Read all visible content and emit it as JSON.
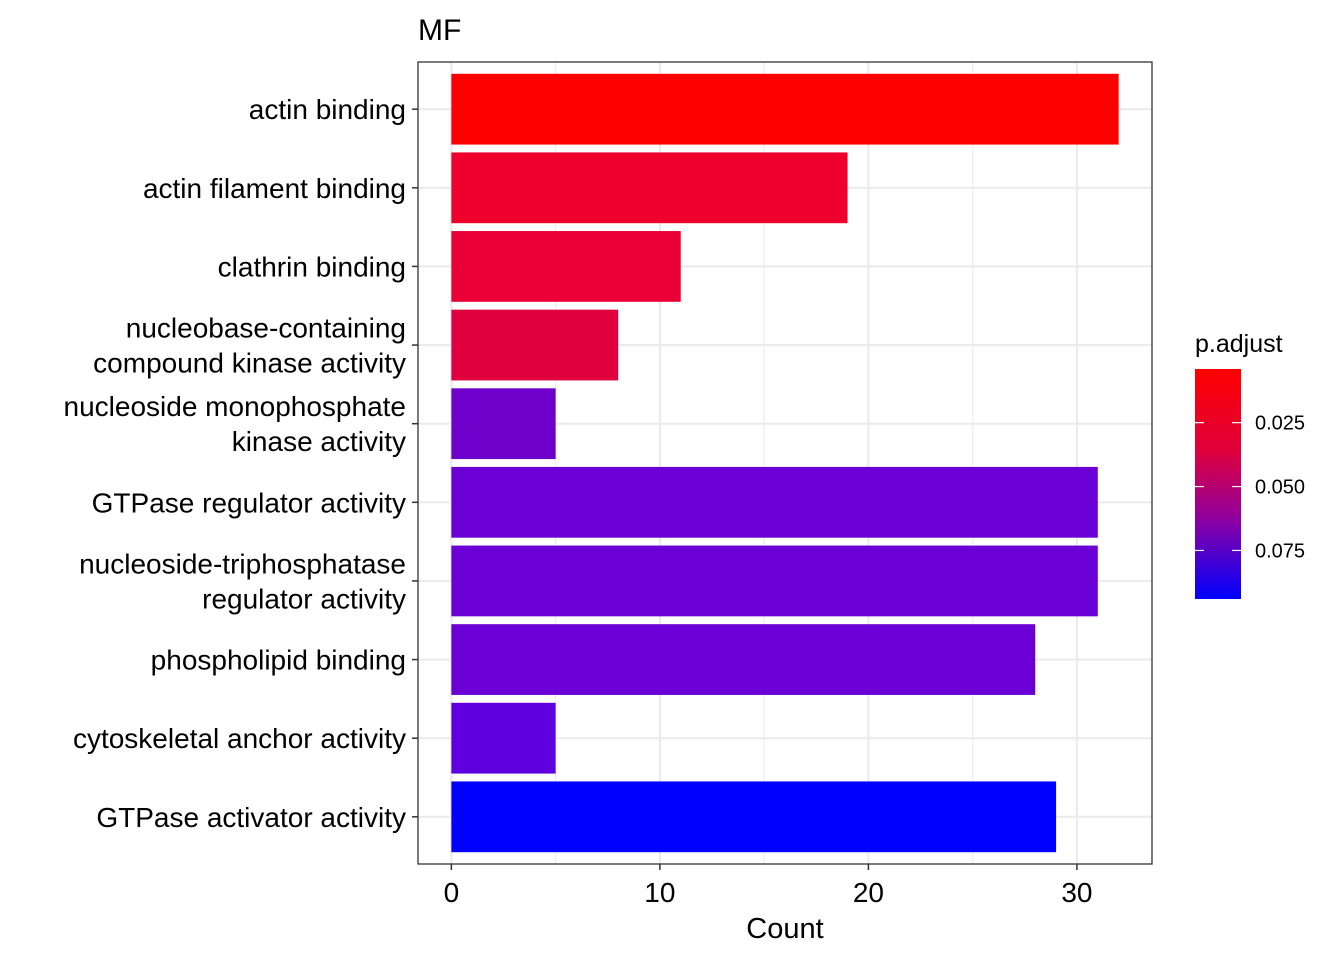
{
  "chart_data": {
    "type": "bar",
    "orientation": "horizontal",
    "title": "MF",
    "xlabel": "Count",
    "ylabel": "",
    "xlim": [
      -1.6,
      33.6
    ],
    "xticks": [
      0,
      10,
      20,
      30
    ],
    "grid": true,
    "legend_position": "right",
    "categories": [
      "actin binding",
      "actin filament binding",
      "clathrin binding",
      "nucleobase-containing\ncompound kinase activity",
      "nucleoside monophosphate\nkinase activity",
      "GTPase regulator activity",
      "nucleoside-triphosphatase\nregulator activity",
      "phospholipid binding",
      "cytoskeletal anchor activity",
      "GTPase activator activity"
    ],
    "values": [
      32,
      19,
      11,
      8,
      5,
      31,
      31,
      28,
      5,
      29
    ],
    "p_adjust": [
      0.004,
      0.012,
      0.016,
      0.022,
      0.072,
      0.073,
      0.073,
      0.073,
      0.076,
      0.094
    ],
    "colors": [
      "#fe0000",
      "#ef002c",
      "#ea0036",
      "#e1003e",
      "#6e00cc",
      "#6a00d5",
      "#6a00d5",
      "#6a00d5",
      "#5f00e0",
      "#0000ff"
    ],
    "colorbar": {
      "title": "p.adjust",
      "range": [
        0.004,
        0.094
      ],
      "ticks": [
        0.025,
        0.05,
        0.075
      ],
      "tick_labels": [
        "0.025",
        "0.050",
        "0.075"
      ],
      "low_color": "#ff0000",
      "high_color": "#0000ff"
    }
  }
}
